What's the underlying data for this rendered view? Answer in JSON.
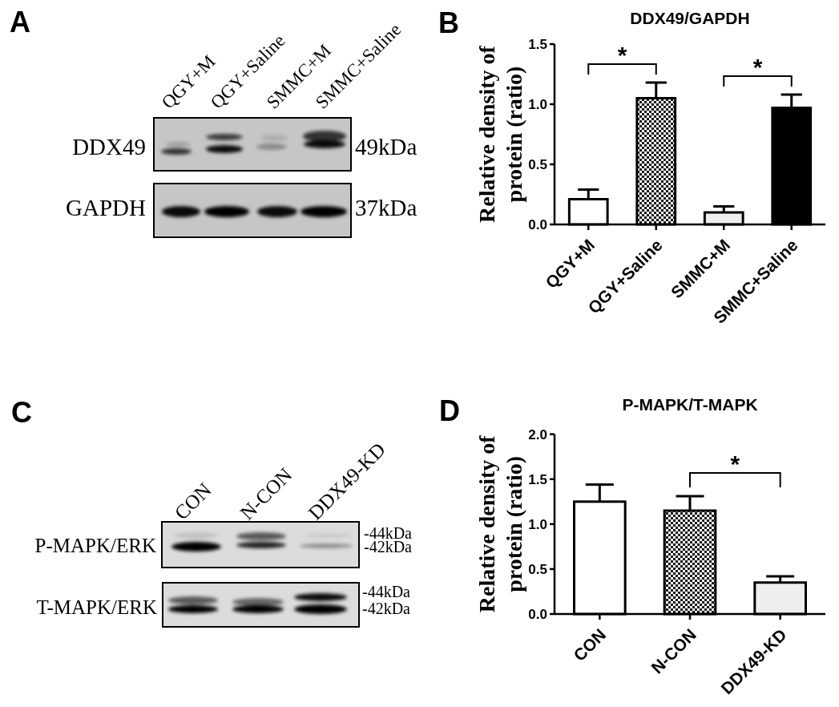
{
  "chart_data": [
    {
      "type": "other",
      "categories": [
        "QGY+M",
        "QGY+Saline",
        "SMMC+M",
        "SMMC+Saline"
      ],
      "annotations": [
        "A",
        "DDX49",
        "49kDa",
        "GAPDH",
        "37kDa"
      ]
    },
    {
      "type": "bar",
      "title": "DDX49/GAPDH",
      "ylabel": "Relative density of\nprotein (ratio)",
      "categories": [
        "QGY+M",
        "QGY+Saline",
        "SMMC+M",
        "SMMC+Saline"
      ],
      "values": [
        0.21,
        1.05,
        0.1,
        0.97
      ],
      "colors": [
        "#ffffff",
        "#1a1a1a",
        "#eeeeee",
        "#000000"
      ],
      "errors": [
        [
          0.21,
          0.29
        ],
        [
          1.05,
          1.18
        ],
        [
          0.1,
          0.15
        ],
        [
          0.97,
          1.08
        ]
      ],
      "ylim": [
        0,
        1.5
      ],
      "yticks": [
        {
          "value": 0,
          "label": "0.0"
        },
        {
          "value": 0.5,
          "label": "0.5"
        },
        {
          "value": 1,
          "label": "1.0"
        },
        {
          "value": 1.5,
          "label": "1.5"
        }
      ],
      "annotations": [
        "B",
        "*",
        "*"
      ]
    },
    {
      "type": "other",
      "categories": [
        "CON",
        "N-CON",
        "DDX49-KD"
      ],
      "annotations": [
        "C",
        "P-MAPK/ERK",
        "-44kDa",
        "-42kDa",
        "T-MAPK/ERK",
        "-44kDa",
        "-42kDa"
      ]
    },
    {
      "type": "bar",
      "title": "P-MAPK/T-MAPK",
      "ylabel": "Relative density of\nprotein (ratio)",
      "categories": [
        "CON",
        "N-CON",
        "DDX49-KD"
      ],
      "values": [
        1.25,
        1.15,
        0.35
      ],
      "colors": [
        "#ffffff",
        "#1a1a1a",
        "#eeeeee"
      ],
      "errors": [
        [
          1.25,
          1.44
        ],
        [
          1.15,
          1.31
        ],
        [
          0.35,
          0.42
        ]
      ],
      "ylim": [
        0,
        2
      ],
      "yticks": [
        {
          "value": 0,
          "label": "0.0"
        },
        {
          "value": 0.5,
          "label": "0.5"
        },
        {
          "value": 1,
          "label": "1.0"
        },
        {
          "value": 1.5,
          "label": "1.5"
        },
        {
          "value": 2,
          "label": "2.0"
        }
      ],
      "annotations": [
        "D",
        "*"
      ]
    }
  ]
}
